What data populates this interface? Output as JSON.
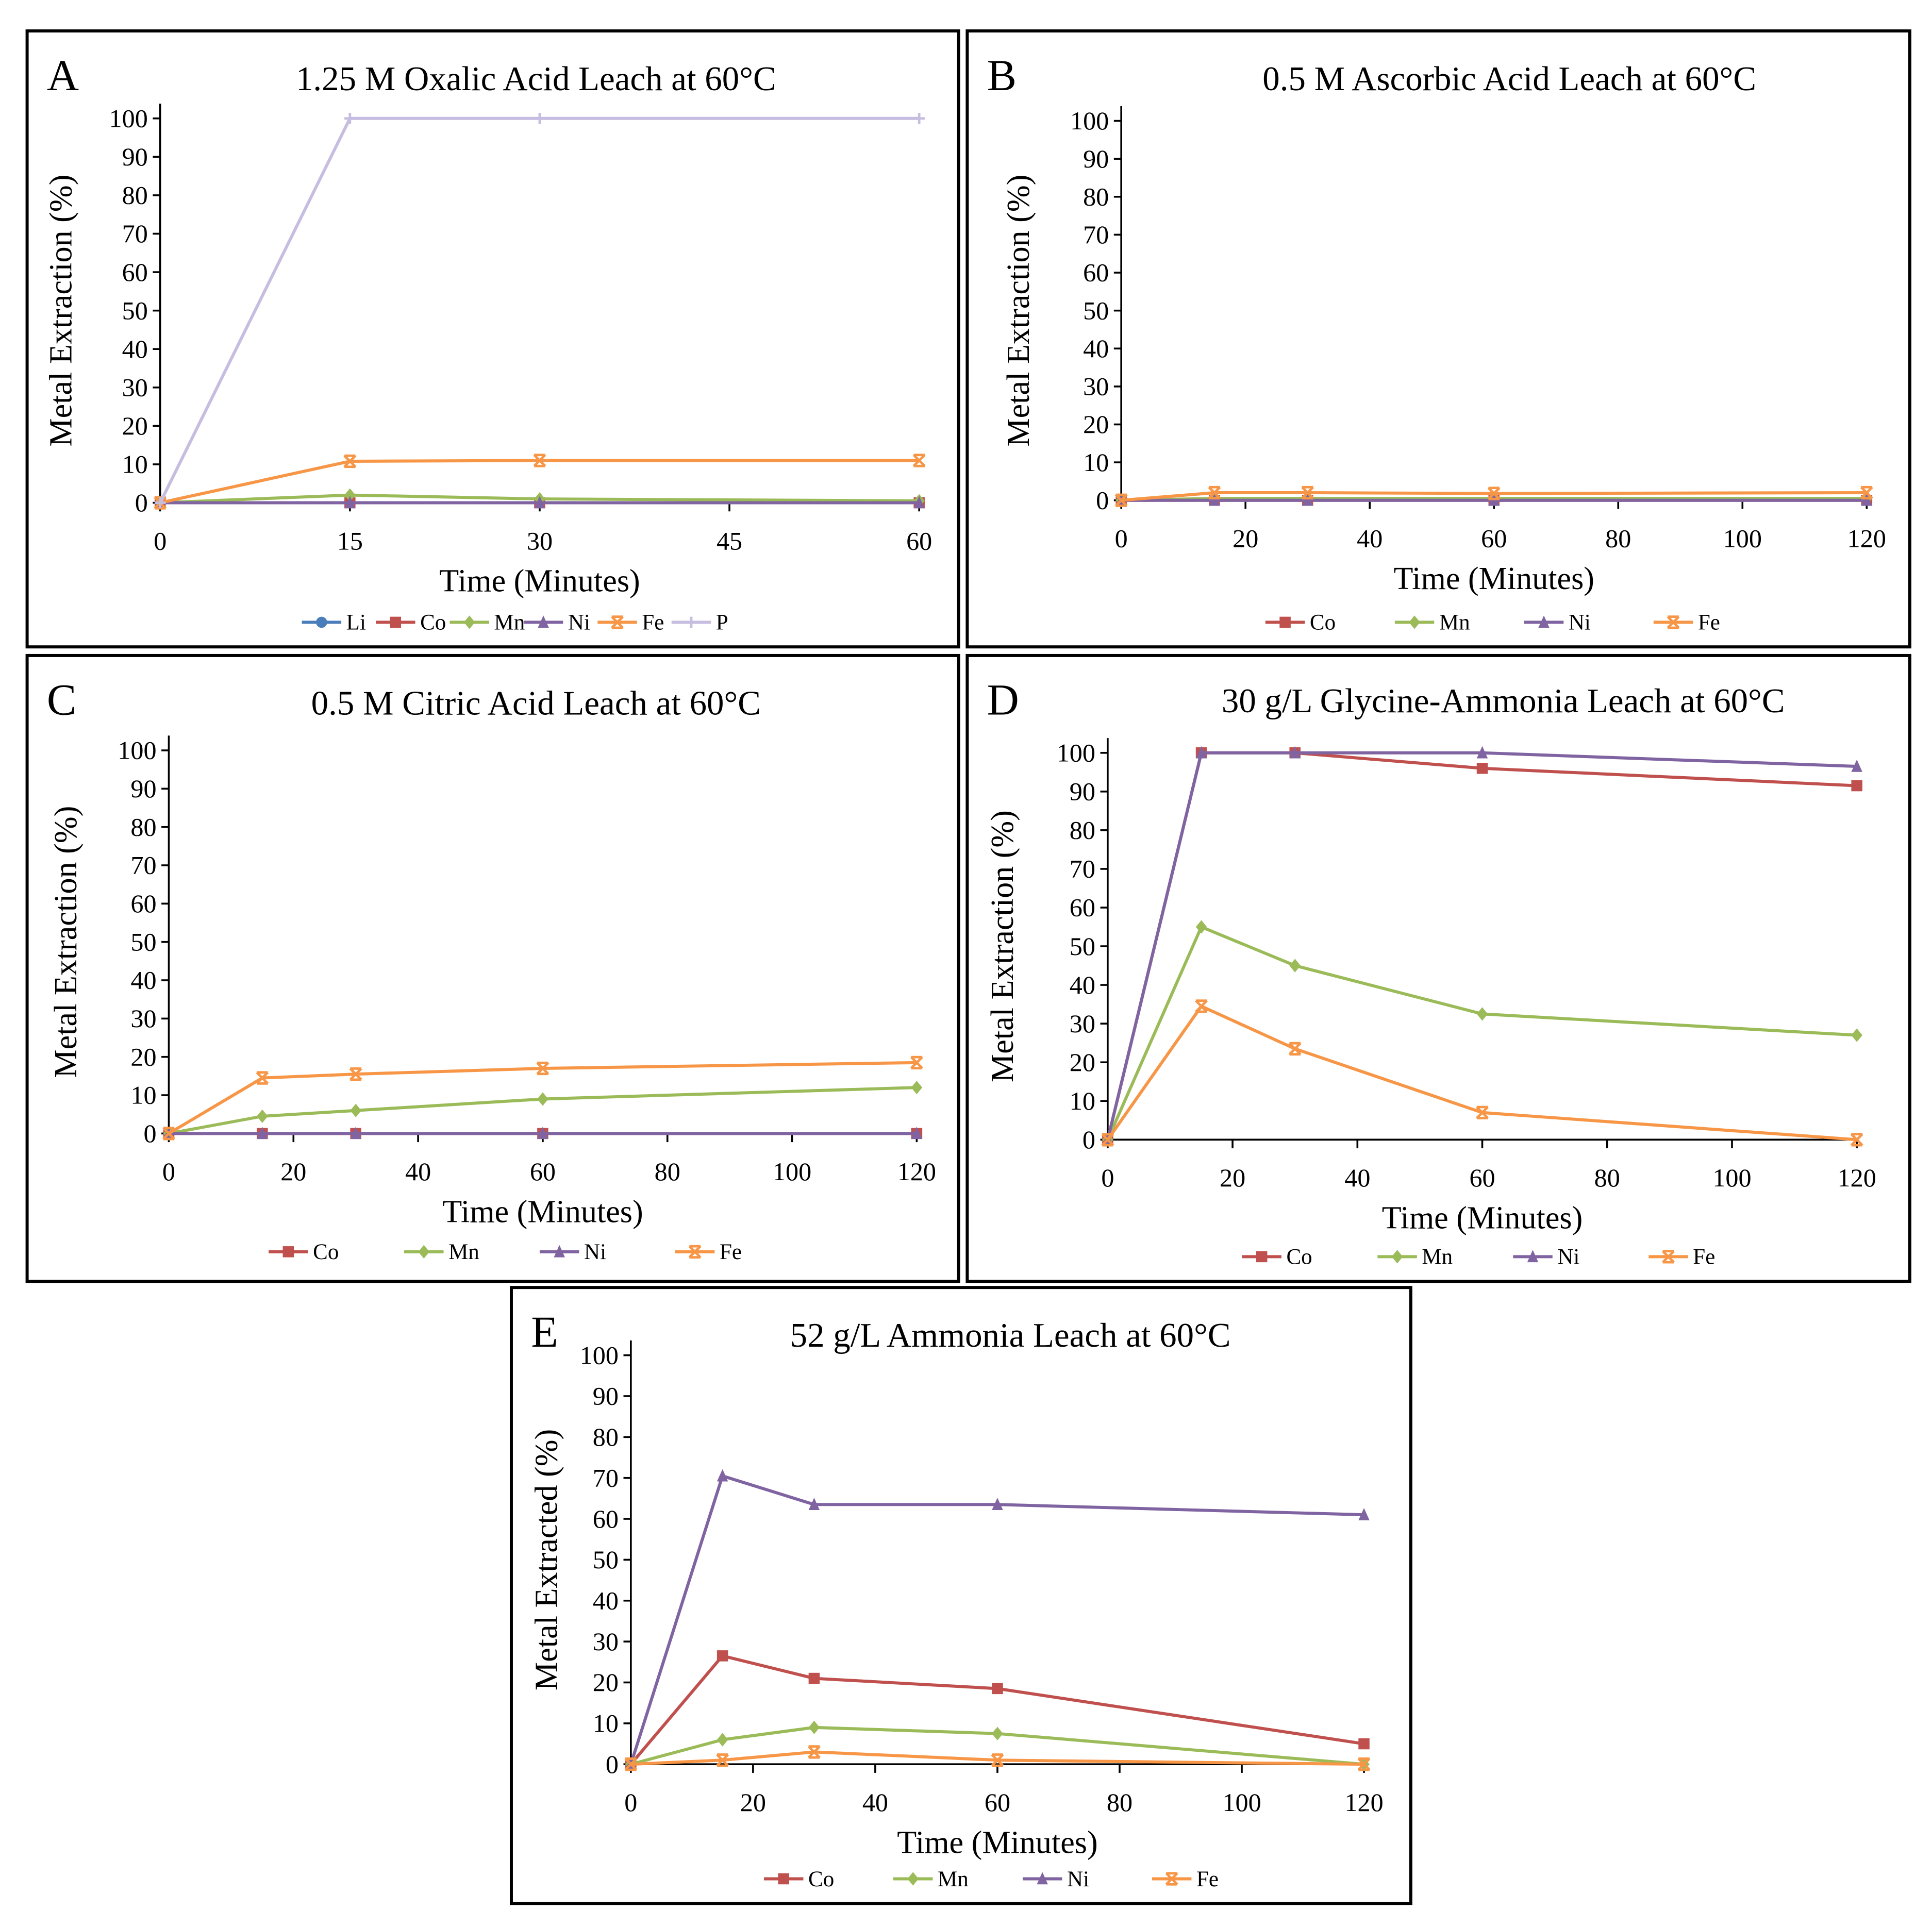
{
  "chart_data": [
    {
      "type": "line",
      "panel": "A",
      "title": "1.25 M Oxalic Acid Leach at 60°C",
      "xlabel": "Time (Minutes)",
      "ylabel": "Metal Extraction (%)",
      "x": [
        0,
        15,
        30,
        60
      ],
      "xticks": [
        0,
        15,
        30,
        45,
        60
      ],
      "xlim": [
        0,
        60
      ],
      "ylim": [
        0,
        100
      ],
      "yticks": [
        0,
        10,
        20,
        30,
        40,
        50,
        60,
        70,
        80,
        90,
        100
      ],
      "legend_position": "bottom",
      "series": [
        {
          "name": "Li",
          "values": [
            0,
            0,
            0,
            0
          ]
        },
        {
          "name": "Co",
          "values": [
            0,
            0,
            0,
            0
          ]
        },
        {
          "name": "Mn",
          "values": [
            0,
            2,
            1,
            0.5
          ]
        },
        {
          "name": "Ni",
          "values": [
            0,
            0,
            0,
            0
          ]
        },
        {
          "name": "Fe",
          "values": [
            0,
            10.8,
            11,
            11
          ]
        },
        {
          "name": "P",
          "values": [
            0,
            100,
            100,
            100
          ]
        }
      ]
    },
    {
      "type": "line",
      "panel": "B",
      "title": "0.5 M Ascorbic Acid Leach at 60°C",
      "xlabel": "Time (Minutes)",
      "ylabel": "Metal Extraction (%)",
      "x": [
        0,
        15,
        30,
        60,
        120
      ],
      "xticks": [
        0,
        20,
        40,
        60,
        80,
        100,
        120
      ],
      "xlim": [
        0,
        120
      ],
      "ylim": [
        0,
        100
      ],
      "yticks": [
        0,
        10,
        20,
        30,
        40,
        50,
        60,
        70,
        80,
        90,
        100
      ],
      "legend_position": "bottom",
      "series": [
        {
          "name": "Co",
          "values": [
            0,
            0,
            0,
            0,
            0
          ]
        },
        {
          "name": "Mn",
          "values": [
            0,
            0.5,
            0.5,
            0.5,
            0.5
          ]
        },
        {
          "name": "Ni",
          "values": [
            0,
            0,
            0,
            0,
            0
          ]
        },
        {
          "name": "Fe",
          "values": [
            0,
            2,
            2,
            1.8,
            2
          ]
        }
      ]
    },
    {
      "type": "line",
      "panel": "C",
      "title": "0.5 M Citric Acid Leach at 60°C",
      "xlabel": "Time (Minutes)",
      "ylabel": "Metal Extraction (%)",
      "x": [
        0,
        15,
        30,
        60,
        120
      ],
      "xticks": [
        0,
        20,
        40,
        60,
        80,
        100,
        120
      ],
      "xlim": [
        0,
        120
      ],
      "ylim": [
        0,
        100
      ],
      "yticks": [
        0,
        10,
        20,
        30,
        40,
        50,
        60,
        70,
        80,
        90,
        100
      ],
      "legend_position": "bottom",
      "series": [
        {
          "name": "Co",
          "values": [
            0,
            0,
            0,
            0,
            0
          ]
        },
        {
          "name": "Mn",
          "values": [
            0,
            4.5,
            6,
            9,
            12
          ]
        },
        {
          "name": "Ni",
          "values": [
            0,
            0,
            0,
            0,
            0
          ]
        },
        {
          "name": "Fe",
          "values": [
            0,
            14.5,
            15.5,
            17,
            18.5
          ]
        }
      ]
    },
    {
      "type": "line",
      "panel": "D",
      "title": "30 g/L Glycine-Ammonia Leach at 60°C",
      "xlabel": "Time (Minutes)",
      "ylabel": "Metal Extraction (%)",
      "x": [
        0,
        15,
        30,
        60,
        120
      ],
      "xticks": [
        0,
        20,
        40,
        60,
        80,
        100,
        120
      ],
      "xlim": [
        0,
        120
      ],
      "ylim": [
        0,
        100
      ],
      "yticks": [
        0,
        10,
        20,
        30,
        40,
        50,
        60,
        70,
        80,
        90,
        100
      ],
      "legend_position": "bottom",
      "series": [
        {
          "name": "Co",
          "values": [
            0,
            100,
            100,
            96,
            91.5
          ]
        },
        {
          "name": "Mn",
          "values": [
            0,
            55,
            45,
            32.5,
            27
          ]
        },
        {
          "name": "Ni",
          "values": [
            0,
            100,
            100,
            100,
            96.5
          ]
        },
        {
          "name": "Fe",
          "values": [
            0,
            34.5,
            23.5,
            7,
            0
          ]
        }
      ]
    },
    {
      "type": "line",
      "panel": "E",
      "title": "52 g/L Ammonia Leach at 60°C",
      "xlabel": "Time (Minutes)",
      "ylabel": "Metal  Extracted (%)",
      "x": [
        0,
        15,
        30,
        60,
        120
      ],
      "xticks": [
        0,
        20,
        40,
        60,
        80,
        100,
        120
      ],
      "xlim": [
        0,
        120
      ],
      "ylim": [
        0,
        100
      ],
      "yticks": [
        0,
        10,
        20,
        30,
        40,
        50,
        60,
        70,
        80,
        90,
        100
      ],
      "legend_position": "bottom",
      "series": [
        {
          "name": "Co",
          "values": [
            0,
            26.5,
            21,
            18.5,
            5
          ]
        },
        {
          "name": "Mn",
          "values": [
            0,
            6,
            9,
            7.5,
            0
          ]
        },
        {
          "name": "Ni",
          "values": [
            0,
            70.5,
            63.5,
            63.5,
            61
          ]
        },
        {
          "name": "Fe",
          "values": [
            0,
            1,
            3,
            1,
            0
          ]
        }
      ]
    }
  ],
  "colors": {
    "Li": "#4a7ebb",
    "Co": "#c0504d",
    "Mn": "#9bbb59",
    "Ni": "#8064a2",
    "Fe": "#f79646",
    "P": "#c6bde0"
  }
}
